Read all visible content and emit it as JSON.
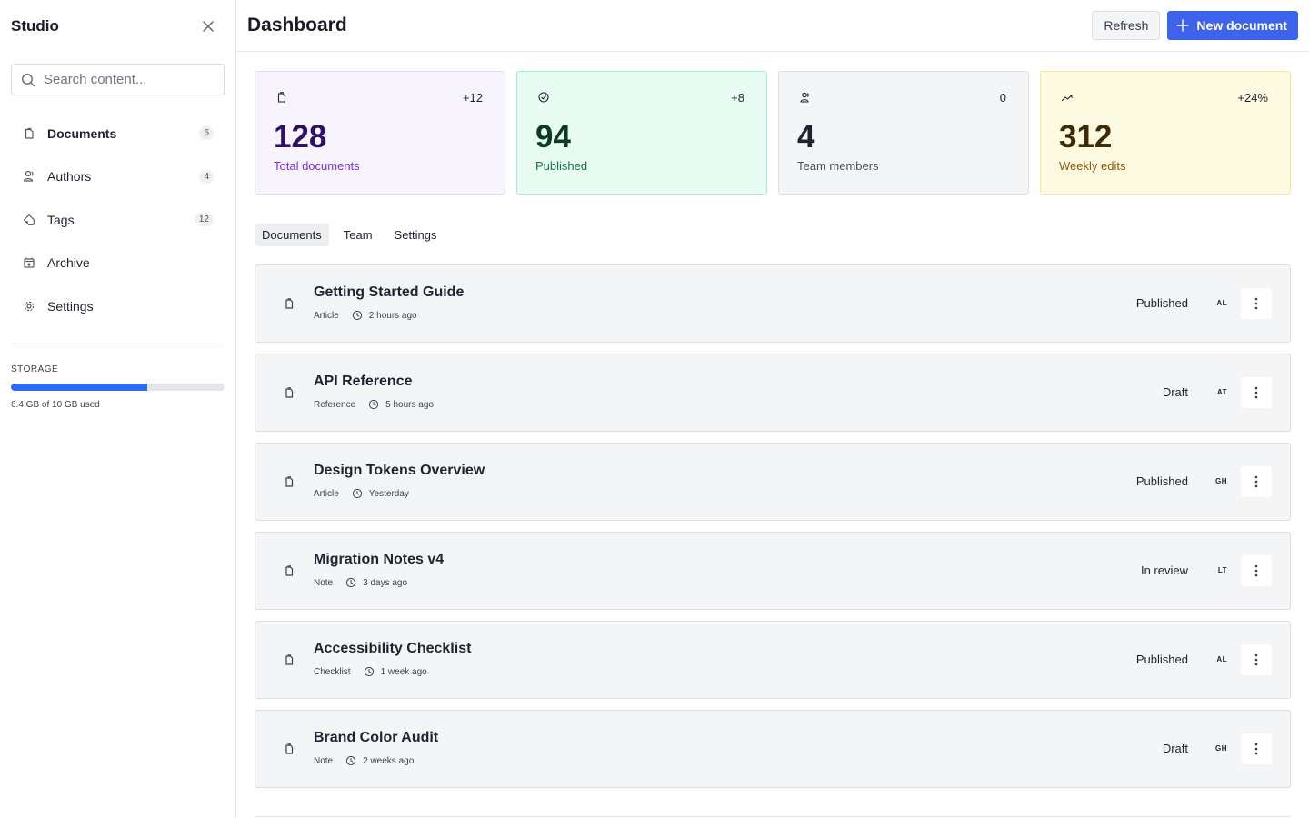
{
  "sidebar": {
    "brand": "Studio",
    "search_placeholder": "Search content...",
    "items": [
      {
        "label": "Documents",
        "badge": "6",
        "icon": "document-icon",
        "active": true
      },
      {
        "label": "Authors",
        "badge": "4",
        "icon": "users-icon"
      },
      {
        "label": "Tags",
        "badge": "12",
        "icon": "tag-icon"
      },
      {
        "label": "Archive",
        "badge": "",
        "icon": "archive-icon"
      },
      {
        "label": "Settings",
        "badge": "",
        "icon": "gear-icon"
      }
    ],
    "storage": {
      "label": "STORAGE",
      "text": "6.4 GB of 10 GB used",
      "used_fraction": 0.64
    }
  },
  "header": {
    "title": "Dashboard",
    "refresh_label": "Refresh",
    "new_label": "New document"
  },
  "stats": [
    {
      "value": "128",
      "label": "Total documents",
      "change": "+12",
      "icon": "document-icon"
    },
    {
      "value": "94",
      "label": "Published",
      "change": "+8",
      "icon": "check-circle-icon"
    },
    {
      "value": "4",
      "label": "Team members",
      "change": "0",
      "icon": "users-icon"
    },
    {
      "value": "312",
      "label": "Weekly edits",
      "change": "+24%",
      "icon": "trending-up-icon"
    }
  ],
  "tabs": [
    {
      "label": "Documents",
      "active": true
    },
    {
      "label": "Team"
    },
    {
      "label": "Settings"
    }
  ],
  "documents": [
    {
      "title": "Getting Started Guide",
      "type": "Article",
      "time": "2 hours ago",
      "status": "Published",
      "initials": "AL"
    },
    {
      "title": "API Reference",
      "type": "Reference",
      "time": "5 hours ago",
      "status": "Draft",
      "initials": "AT"
    },
    {
      "title": "Design Tokens Overview",
      "type": "Article",
      "time": "Yesterday",
      "status": "Published",
      "initials": "GH"
    },
    {
      "title": "Migration Notes v4",
      "type": "Note",
      "time": "3 days ago",
      "status": "In review",
      "initials": "LT"
    },
    {
      "title": "Accessibility Checklist",
      "type": "Checklist",
      "time": "1 week ago",
      "status": "Published",
      "initials": "AL"
    },
    {
      "title": "Brand Color Audit",
      "type": "Note",
      "time": "2 weeks ago",
      "status": "Draft",
      "initials": "GH"
    }
  ]
}
